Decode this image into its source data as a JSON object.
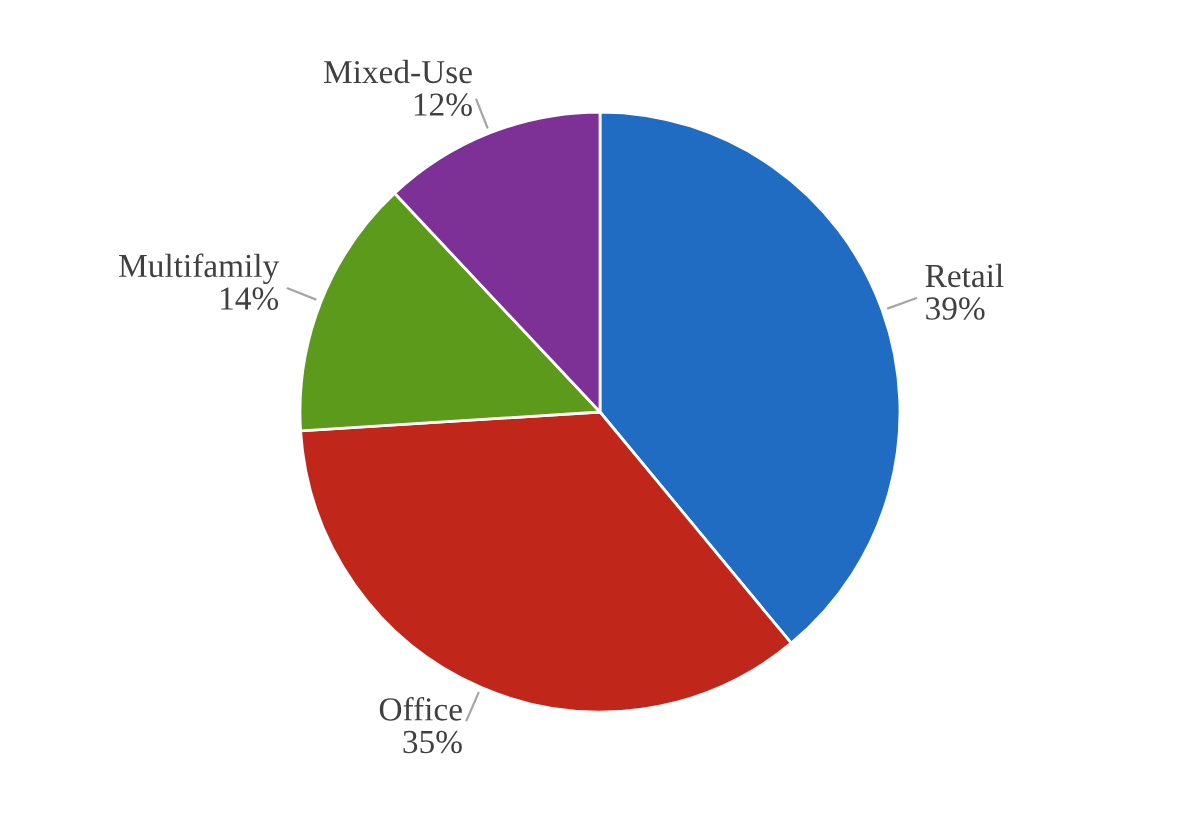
{
  "chart_data": {
    "type": "pie",
    "categories": [
      "Retail",
      "Office",
      "Multifamily",
      "Mixed-Use"
    ],
    "values": [
      39,
      35,
      14,
      12
    ],
    "value_labels": [
      "39%",
      "35%",
      "14%",
      "12%"
    ],
    "colors": [
      "#1f6cc2",
      "#c1261a",
      "#5c9a1c",
      "#7d3196"
    ],
    "legend": false
  }
}
